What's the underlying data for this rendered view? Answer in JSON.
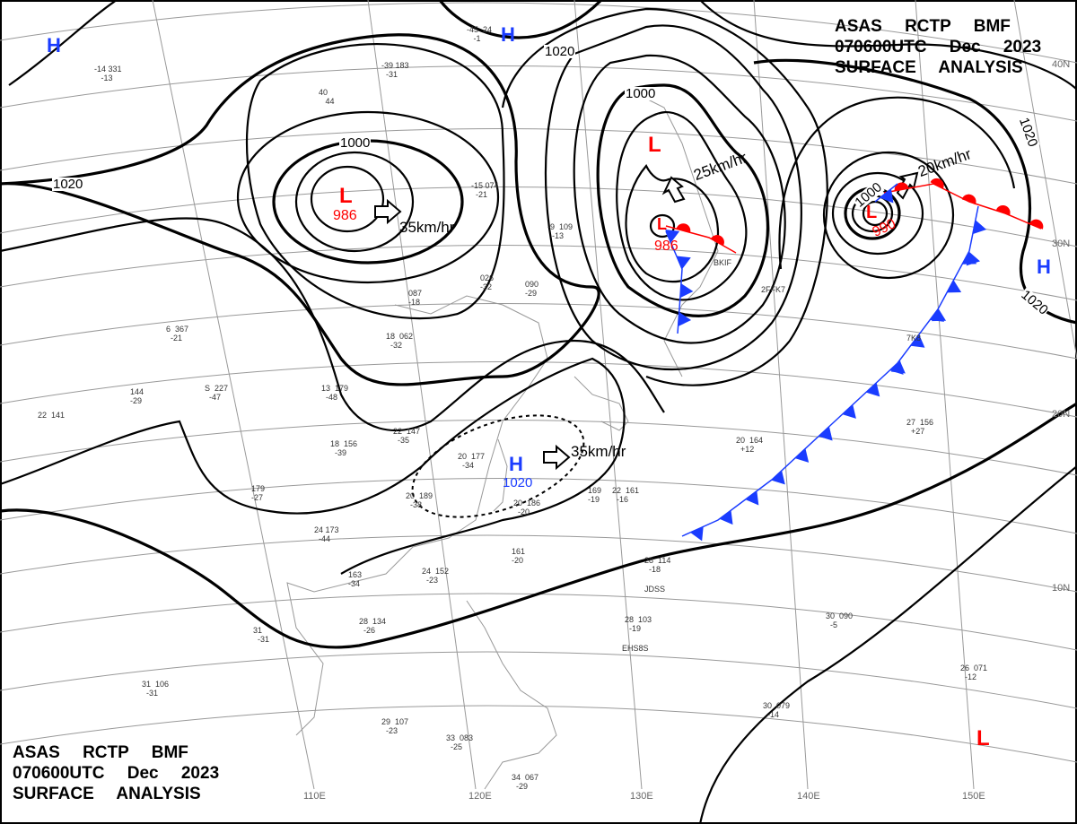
{
  "header": {
    "line1": "ASAS RCTP BMF",
    "line2": "070600UTC Dec 2023",
    "line3": "SURFACE ANALYSIS"
  },
  "footer": {
    "line1": "ASAS RCTP BMF",
    "line2": "070600UTC Dec 2023",
    "line3": "SURFACE ANALYSIS"
  },
  "grid_labels": {
    "lat": [
      "40N",
      "30N",
      "20N",
      "10N"
    ],
    "lon": [
      "110E",
      "120E",
      "130E",
      "140E",
      "150E"
    ]
  },
  "isobar_labels": [
    "1020",
    "1000",
    "1020",
    "1000",
    "1020",
    "1000",
    "1020"
  ],
  "pressure_systems": [
    {
      "type": "H",
      "label": "H"
    },
    {
      "type": "H",
      "label": "H"
    },
    {
      "type": "L",
      "label": "L",
      "central": "986",
      "motion": "35km/hr"
    },
    {
      "type": "L",
      "label": "L"
    },
    {
      "type": "L",
      "label": "L",
      "central": "986",
      "motion": "25km/hr"
    },
    {
      "type": "L",
      "label": "L",
      "central": "990",
      "motion": "20km/hr"
    },
    {
      "type": "H",
      "label": "H",
      "central": "1020",
      "motion": "35km/hr"
    },
    {
      "type": "H",
      "label": "H"
    },
    {
      "type": "L",
      "label": "L"
    }
  ],
  "stations": [
    "-14 331\n   -13",
    "-39 183\n  -31",
    "40\n   44",
    "-15 074\n  -21",
    "-9  109\n  -13",
    "026\n-32",
    "090\n-29",
    "087\n-18",
    "18  062\n  -32",
    "6  367\n  -21",
    "S  227\n  -47",
    "144\n-29",
    "22  141",
    "13  179\n  -48",
    "22  147\n  -35",
    "18  156\n  -39",
    "20  177\n  -34",
    "20  189\n  -38",
    "179\n-27",
    "24 173\n  -44",
    "163\n-34",
    "24  152\n  -23",
    "28  134\n  -26",
    "31  \n  -31",
    "31  106\n  -31",
    "29  107\n  -23",
    "33  083\n  -25",
    "34  067\n  -29",
    "20  186\n  -20",
    "161\n-20",
    "169\n-19",
    "22  161\n  -16",
    "28  114\n  -18",
    "28  103\n  -19",
    "30  090\n  -5",
    "20  164\n  +12",
    "27  156\n  +27",
    "26  071\n  -12",
    "30  079\n  -14",
    "-45  24\n   -1"
  ],
  "station_ids": [
    "BKIF",
    "2FFK7",
    "JDSS",
    "EHS8S",
    "7K8"
  ],
  "colors": {
    "warm_front": "#ff0000",
    "cold_front": "#1a3cff",
    "high": "#1a3cff",
    "low": "#ff0000"
  }
}
